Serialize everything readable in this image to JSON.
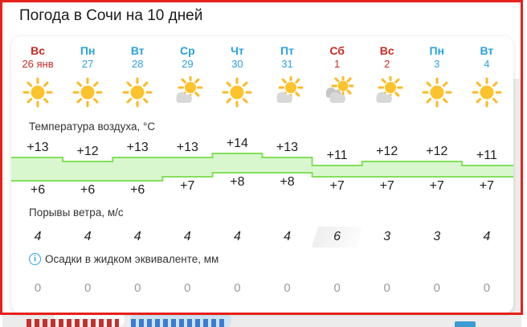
{
  "page": {
    "title": "Погода в Сочи на 10 дней"
  },
  "forecast": {
    "temperature_label": "Температура воздуха, °C",
    "wind_label": "Порывы ветра, м/с",
    "precip_label": "Осадки в жидком эквиваленте, мм",
    "info_icon_glyph": "i",
    "days": [
      {
        "abbr": "Вс",
        "date": "26 янв",
        "weekend": true,
        "icon": "sun",
        "t_max": 13,
        "t_min": 6,
        "t_max_label": "+13",
        "t_min_label": "+6",
        "wind": "4",
        "wind_highlight": false,
        "precip": "0"
      },
      {
        "abbr": "Пн",
        "date": "27",
        "weekend": false,
        "icon": "sun",
        "t_max": 12,
        "t_min": 6,
        "t_max_label": "+12",
        "t_min_label": "+6",
        "wind": "4",
        "wind_highlight": false,
        "precip": "0"
      },
      {
        "abbr": "Вт",
        "date": "28",
        "weekend": false,
        "icon": "sun",
        "t_max": 13,
        "t_min": 6,
        "t_max_label": "+13",
        "t_min_label": "+6",
        "wind": "4",
        "wind_highlight": false,
        "precip": "0"
      },
      {
        "abbr": "Ср",
        "date": "29",
        "weekend": false,
        "icon": "sun-cloud",
        "t_max": 13,
        "t_min": 7,
        "t_max_label": "+13",
        "t_min_label": "+7",
        "wind": "4",
        "wind_highlight": false,
        "precip": "0"
      },
      {
        "abbr": "Чт",
        "date": "30",
        "weekend": false,
        "icon": "sun",
        "t_max": 14,
        "t_min": 8,
        "t_max_label": "+14",
        "t_min_label": "+8",
        "wind": "4",
        "wind_highlight": false,
        "precip": "0"
      },
      {
        "abbr": "Пт",
        "date": "31",
        "weekend": false,
        "icon": "sun-cloud",
        "t_max": 13,
        "t_min": 8,
        "t_max_label": "+13",
        "t_min_label": "+8",
        "wind": "4",
        "wind_highlight": false,
        "precip": "0"
      },
      {
        "abbr": "Сб",
        "date": "1",
        "weekend": true,
        "icon": "clouds-sun",
        "t_max": 11,
        "t_min": 7,
        "t_max_label": "+11",
        "t_min_label": "+7",
        "wind": "6",
        "wind_highlight": true,
        "precip": "0"
      },
      {
        "abbr": "Вс",
        "date": "2",
        "weekend": true,
        "icon": "sun-cloud",
        "t_max": 12,
        "t_min": 7,
        "t_max_label": "+12",
        "t_min_label": "+7",
        "wind": "3",
        "wind_highlight": false,
        "precip": "0"
      },
      {
        "abbr": "Пн",
        "date": "3",
        "weekend": false,
        "icon": "sun",
        "t_max": 12,
        "t_min": 7,
        "t_max_label": "+12",
        "t_min_label": "+7",
        "wind": "3",
        "wind_highlight": false,
        "precip": "0"
      },
      {
        "abbr": "Вт",
        "date": "4",
        "weekend": false,
        "icon": "sun",
        "t_max": 11,
        "t_min": 7,
        "t_max_label": "+11",
        "t_min_label": "+7",
        "wind": "4",
        "wind_highlight": false,
        "precip": "0"
      }
    ]
  },
  "colors": {
    "weekend_red": "#cb2b24",
    "weekday_blue": "#2aa1e0",
    "sun_yellow": "#fcc32d",
    "sun_ray": "#fbba24",
    "cloud_gray": "#d8d8d8",
    "cloud_gray_dark": "#c6c6c6",
    "band_fill": "#d9f7cf",
    "band_stroke": "#84df59",
    "frame_red": "#e6211a",
    "muted_gray": "#9a9a9a"
  }
}
